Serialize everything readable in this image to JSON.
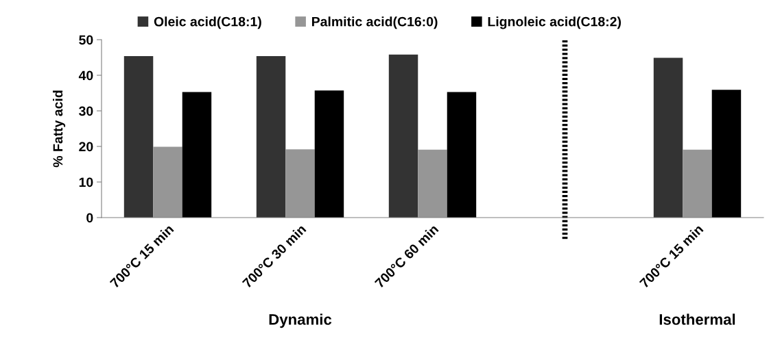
{
  "chart_data": {
    "type": "bar",
    "ylabel": "% Fatty acid",
    "categories": [
      "700°C 15 min",
      "700°C 30 min",
      "700°C 60 min",
      null,
      "700°C 15 min"
    ],
    "series": [
      {
        "name": "Oleic acid(C18:1)",
        "color": "#333333",
        "values": [
          45.4,
          45.4,
          45.8,
          null,
          44.9
        ]
      },
      {
        "name": "Palmitic acid(C16:0)",
        "color": "#969696",
        "values": [
          19.9,
          19.2,
          19.1,
          null,
          19.1
        ]
      },
      {
        "name": "Lignoleic acid(C18:2)",
        "color": "#000000",
        "values": [
          35.3,
          35.7,
          35.3,
          null,
          35.9
        ]
      }
    ],
    "ylim": [
      0,
      50
    ],
    "yticks": [
      0,
      10,
      20,
      30,
      40,
      50
    ],
    "grid": false,
    "legend": "top",
    "annotations": [
      "Dynamic",
      "Isothermal"
    ]
  }
}
